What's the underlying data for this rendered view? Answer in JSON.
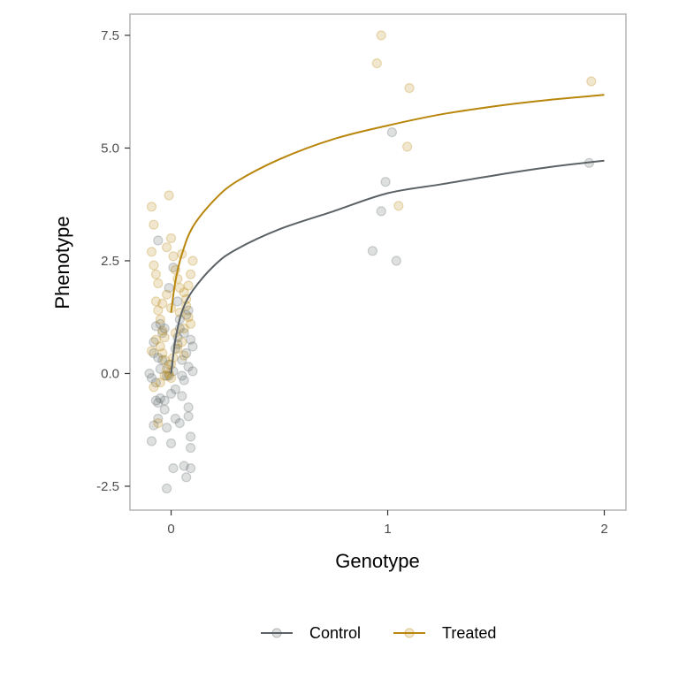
{
  "chart_data": {
    "type": "scatter",
    "xlabel": "Genotype",
    "ylabel": "Phenotype",
    "xlim": [
      -0.19,
      2.1
    ],
    "ylim": [
      -3.03,
      7.97
    ],
    "x_ticks": [
      0,
      1,
      2
    ],
    "x_tick_labels": [
      "0",
      "1",
      "2"
    ],
    "y_ticks": [
      -2.5,
      0.0,
      2.5,
      5.0,
      7.5
    ],
    "y_tick_labels": [
      "-2.5",
      "0.0",
      "2.5",
      "5.0",
      "7.5"
    ],
    "grid": false,
    "legend_position": "bottom",
    "series": [
      {
        "name": "Control",
        "color": "#5b6266",
        "points": [
          [
            -0.09,
            -0.1
          ],
          [
            -0.08,
            0.7
          ],
          [
            -0.08,
            0.45
          ],
          [
            -0.07,
            1.05
          ],
          [
            -0.06,
            0.35
          ],
          [
            -0.05,
            -0.55
          ],
          [
            -0.04,
            0.3
          ],
          [
            -0.06,
            -0.65
          ],
          [
            -0.07,
            -0.2
          ],
          [
            -0.05,
            1.1
          ],
          [
            -0.04,
            0.9
          ],
          [
            -0.03,
            -0.8
          ],
          [
            -0.02,
            -0.05
          ],
          [
            -0.01,
            0.2
          ],
          [
            0.0,
            -0.45
          ],
          [
            0.01,
            0.05
          ],
          [
            0.02,
            0.55
          ],
          [
            0.03,
            0.8
          ],
          [
            0.04,
            1.0
          ],
          [
            0.05,
            0.3
          ],
          [
            0.06,
            -0.15
          ],
          [
            0.07,
            0.45
          ],
          [
            0.08,
            1.4
          ],
          [
            0.09,
            0.75
          ],
          [
            0.1,
            0.6
          ],
          [
            -0.09,
            -1.5
          ],
          [
            -0.08,
            -1.15
          ],
          [
            -0.06,
            -1.0
          ],
          [
            -0.03,
            -0.6
          ],
          [
            -0.02,
            -1.2
          ],
          [
            0.0,
            -1.55
          ],
          [
            0.01,
            -2.1
          ],
          [
            0.02,
            -1.0
          ],
          [
            0.04,
            -1.1
          ],
          [
            0.05,
            -0.5
          ],
          [
            0.07,
            -2.3
          ],
          [
            0.08,
            -0.75
          ],
          [
            0.09,
            -1.4
          ],
          [
            0.09,
            -1.65
          ],
          [
            0.09,
            -2.1
          ],
          [
            -0.02,
            -2.55
          ],
          [
            0.06,
            -2.05
          ],
          [
            0.08,
            -0.95
          ],
          [
            -0.06,
            2.95
          ],
          [
            -0.03,
            1.0
          ],
          [
            -0.01,
            1.9
          ],
          [
            0.01,
            2.35
          ],
          [
            0.03,
            1.6
          ],
          [
            0.04,
            1.2
          ],
          [
            0.06,
            0.9
          ],
          [
            0.07,
            1.3
          ],
          [
            0.1,
            0.05
          ],
          [
            -0.1,
            0.0
          ],
          [
            -0.07,
            -0.6
          ],
          [
            0.02,
            -0.35
          ],
          [
            0.03,
            0.65
          ],
          [
            0.05,
            -0.05
          ],
          [
            -0.05,
            0.1
          ],
          [
            0.08,
            0.15
          ],
          [
            -0.01,
            -0.05
          ],
          [
            0.93,
            2.72
          ],
          [
            0.97,
            3.6
          ],
          [
            0.99,
            4.25
          ],
          [
            1.02,
            5.35
          ],
          [
            1.04,
            2.5
          ],
          [
            1.93,
            4.67
          ]
        ],
        "curve": [
          [
            0.0,
            0.0
          ],
          [
            0.02,
            0.75
          ],
          [
            0.05,
            1.37
          ],
          [
            0.1,
            1.84
          ],
          [
            0.2,
            2.4
          ],
          [
            0.3,
            2.75
          ],
          [
            0.5,
            3.2
          ],
          [
            0.75,
            3.6
          ],
          [
            1.0,
            4.0
          ],
          [
            1.25,
            4.2
          ],
          [
            1.5,
            4.4
          ],
          [
            1.75,
            4.58
          ],
          [
            2.0,
            4.72
          ]
        ]
      },
      {
        "name": "Treated",
        "color": "#b8860b",
        "points": [
          [
            -0.09,
            3.7
          ],
          [
            -0.08,
            3.3
          ],
          [
            -0.09,
            2.7
          ],
          [
            -0.08,
            2.4
          ],
          [
            -0.07,
            2.2
          ],
          [
            -0.06,
            2.0
          ],
          [
            -0.07,
            1.6
          ],
          [
            -0.06,
            1.4
          ],
          [
            -0.05,
            1.2
          ],
          [
            -0.04,
            0.95
          ],
          [
            -0.03,
            0.8
          ],
          [
            -0.05,
            0.6
          ],
          [
            -0.04,
            0.45
          ],
          [
            -0.03,
            0.3
          ],
          [
            -0.02,
            0.1
          ],
          [
            -0.01,
            0.0
          ],
          [
            0.0,
            -0.1
          ],
          [
            -0.08,
            -0.3
          ],
          [
            -0.06,
            -1.1
          ],
          [
            -0.02,
            2.8
          ],
          [
            0.0,
            3.0
          ],
          [
            -0.01,
            3.95
          ],
          [
            0.01,
            2.6
          ],
          [
            0.02,
            2.3
          ],
          [
            0.03,
            2.1
          ],
          [
            0.04,
            1.9
          ],
          [
            0.05,
            2.65
          ],
          [
            0.06,
            1.8
          ],
          [
            0.07,
            1.5
          ],
          [
            0.08,
            1.25
          ],
          [
            0.09,
            1.1
          ],
          [
            0.1,
            2.5
          ],
          [
            0.09,
            2.2
          ],
          [
            0.08,
            1.95
          ],
          [
            0.07,
            1.65
          ],
          [
            0.06,
            1.0
          ],
          [
            0.05,
            0.7
          ],
          [
            0.03,
            0.55
          ],
          [
            0.01,
            0.35
          ],
          [
            0.0,
            0.2
          ],
          [
            -0.03,
            -0.05
          ],
          [
            -0.05,
            -0.2
          ],
          [
            0.02,
            0.9
          ],
          [
            0.04,
            1.35
          ],
          [
            0.06,
            0.4
          ],
          [
            -0.07,
            0.75
          ],
          [
            -0.04,
            1.55
          ],
          [
            -0.02,
            1.75
          ],
          [
            0.0,
            1.45
          ],
          [
            -0.09,
            0.5
          ],
          [
            0.95,
            6.88
          ],
          [
            0.97,
            7.5
          ],
          [
            1.05,
            3.72
          ],
          [
            1.09,
            5.03
          ],
          [
            1.1,
            6.33
          ],
          [
            1.94,
            6.48
          ]
        ],
        "curve": [
          [
            0.0,
            1.35
          ],
          [
            0.02,
            2.05
          ],
          [
            0.05,
            2.65
          ],
          [
            0.1,
            3.25
          ],
          [
            0.2,
            3.85
          ],
          [
            0.3,
            4.25
          ],
          [
            0.5,
            4.75
          ],
          [
            0.75,
            5.2
          ],
          [
            1.0,
            5.5
          ],
          [
            1.25,
            5.75
          ],
          [
            1.5,
            5.93
          ],
          [
            1.75,
            6.07
          ],
          [
            2.0,
            6.18
          ]
        ]
      }
    ]
  }
}
